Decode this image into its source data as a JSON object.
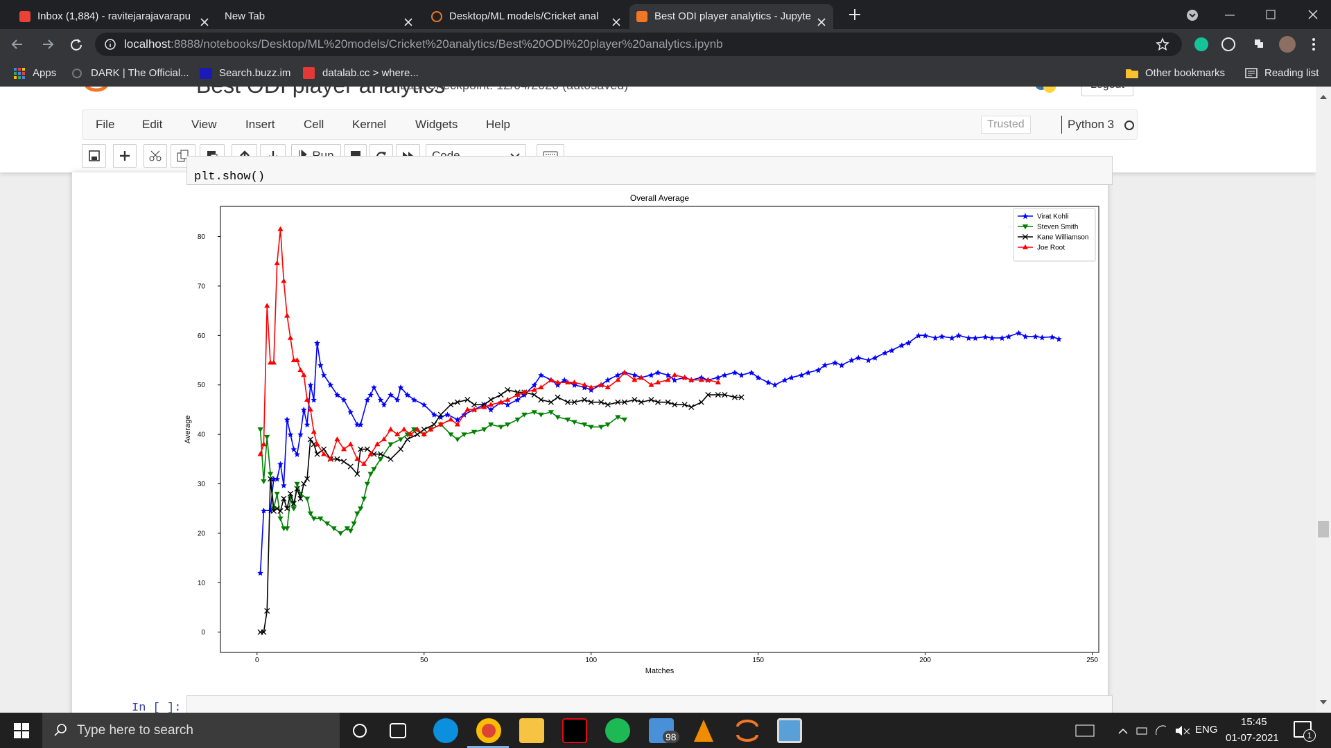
{
  "browser": {
    "tabs": [
      "Inbox (1,884) - ravitejarajavarapu",
      "New Tab",
      "Desktop/ML models/Cricket anal",
      "Best ODI player analytics - Jupyte"
    ],
    "address_host": "localhost",
    "address_path": ":8888/notebooks/Desktop/ML%20models/Cricket%20analytics/Best%20ODI%20player%20analytics.ipynb",
    "bookmarks": [
      "Apps",
      "DARK | The Official...",
      "Search.buzz.im",
      "datalab.cc > where..."
    ],
    "other_bookmarks": "Other bookmarks",
    "reading_list": "Reading list"
  },
  "notebook": {
    "title": "Best ODI player analytics",
    "checkpoint": "Last Checkpoint: 12/04/2020  (autosaved)",
    "logout": "Logout",
    "menu": [
      "File",
      "Edit",
      "View",
      "Insert",
      "Cell",
      "Kernel",
      "Widgets",
      "Help"
    ],
    "trusted": "Trusted",
    "kernel": "Python 3",
    "run": "Run",
    "cell_type": "Code",
    "code": "plt.show()",
    "prompt": "In [ ]:"
  },
  "chart_data": {
    "type": "line",
    "title": "Overall Average",
    "x_label": "Matches",
    "y_label": "Average",
    "xlim": [
      -10.95,
      251.95
    ],
    "ylim": [
      -4.1,
      86.1
    ],
    "xticks": [
      0,
      50,
      100,
      150,
      200,
      250
    ],
    "yticks": [
      0,
      10,
      20,
      30,
      40,
      50,
      60,
      70,
      80
    ],
    "legend": "upper right",
    "series": [
      {
        "name": "Virat Kohli",
        "color": "#0000ff",
        "marker": "*",
        "x": [
          1,
          2,
          4,
          5,
          6,
          7,
          8,
          9,
          10,
          11,
          12,
          13,
          14,
          15,
          16,
          17,
          18,
          19,
          20,
          22,
          24,
          26,
          28,
          30,
          31,
          33,
          34,
          35,
          37,
          38,
          40,
          42,
          43,
          45,
          47,
          50,
          53,
          55,
          57,
          60,
          62,
          65,
          68,
          70,
          73,
          75,
          78,
          80,
          83,
          85,
          88,
          90,
          92,
          95,
          98,
          100,
          103,
          105,
          108,
          110,
          113,
          115,
          118,
          120,
          123,
          125,
          128,
          130,
          133,
          135,
          138,
          140,
          143,
          145,
          148,
          150,
          153,
          155,
          158,
          160,
          163,
          165,
          168,
          170,
          173,
          175,
          178,
          180,
          183,
          185,
          188,
          190,
          193,
          195,
          198,
          200,
          203,
          205,
          208,
          210,
          213,
          215,
          218,
          220,
          223,
          225,
          228,
          230,
          233,
          235,
          238,
          240
        ],
        "values": [
          12,
          24.6,
          24.6,
          31,
          31,
          34,
          29.7,
          43,
          40,
          37,
          36,
          40,
          45,
          42,
          50,
          47,
          58.5,
          54,
          52,
          50,
          48,
          47,
          44.5,
          42,
          42,
          47,
          48,
          49.5,
          47,
          46,
          48,
          47,
          49.5,
          48,
          47,
          46,
          44,
          43.5,
          44,
          43,
          44,
          45,
          46,
          45,
          46.5,
          46,
          47,
          48,
          50,
          52,
          51,
          50,
          51,
          50,
          49.5,
          49,
          50,
          51,
          52,
          52.5,
          52,
          51.5,
          52,
          52.5,
          52,
          51,
          51.5,
          51,
          51.5,
          51,
          51.5,
          52,
          52.5,
          52,
          52.5,
          51.5,
          50.5,
          50,
          51,
          51.5,
          52,
          52.5,
          53,
          54,
          54.5,
          54,
          55,
          55.5,
          55,
          55.5,
          56.5,
          57,
          58,
          58.5,
          60,
          60,
          59.5,
          59.8,
          59.5,
          60,
          59.5,
          59.5,
          59.7,
          59.5,
          59.5,
          59.8,
          60.5,
          59.8,
          59.8,
          59.6,
          59.7,
          59.3
        ]
      },
      {
        "name": "Steven Smith",
        "color": "#008000",
        "marker": "v",
        "x": [
          1,
          2,
          3,
          4,
          5,
          6,
          7,
          8,
          9,
          10,
          11,
          12,
          13,
          15,
          16,
          17,
          19,
          21,
          23,
          25,
          27,
          28,
          29,
          30,
          31,
          32,
          33,
          34,
          35,
          37,
          40,
          43,
          45,
          47,
          50,
          52,
          55,
          58,
          60,
          62,
          65,
          68,
          70,
          73,
          75,
          78,
          80,
          83,
          85,
          88,
          90,
          93,
          95,
          98,
          100,
          103,
          105,
          108,
          110
        ],
        "values": [
          41,
          30.5,
          39.5,
          32,
          25,
          28,
          23,
          21,
          21,
          27,
          25,
          30,
          28,
          27,
          24,
          23,
          23,
          22,
          21,
          20,
          21,
          20.5,
          22,
          24,
          25,
          27,
          30,
          32,
          33,
          35,
          38,
          39,
          40,
          41,
          40,
          41,
          42,
          40,
          39,
          40,
          40.5,
          41,
          42,
          41.5,
          42,
          43,
          44,
          44.5,
          44,
          44.5,
          43.5,
          43,
          42.5,
          42,
          41.5,
          41.5,
          42,
          43.5,
          43
        ]
      },
      {
        "name": "Kane Williamson",
        "color": "#000000",
        "marker": "x",
        "x": [
          1,
          2,
          3,
          4,
          5,
          6,
          7,
          8,
          9,
          10,
          11,
          12,
          13,
          14,
          15,
          16,
          17,
          18,
          20,
          22,
          24,
          26,
          28,
          30,
          31,
          33,
          35,
          37,
          40,
          43,
          45,
          48,
          50,
          53,
          55,
          58,
          60,
          63,
          65,
          68,
          70,
          73,
          75,
          78,
          80,
          83,
          85,
          88,
          90,
          93,
          95,
          98,
          100,
          103,
          105,
          108,
          110,
          113,
          115,
          118,
          120,
          123,
          125,
          128,
          130,
          133,
          135,
          138,
          140,
          143,
          145
        ],
        "values": [
          0,
          0,
          4.3,
          31,
          24.5,
          25,
          24.5,
          27,
          25,
          28,
          26,
          29,
          27,
          30,
          31,
          39,
          38,
          36,
          37,
          35,
          35,
          34.5,
          33.5,
          32,
          37,
          37,
          36,
          36,
          35,
          37,
          39,
          40,
          41,
          42,
          44,
          46,
          46.5,
          47,
          46,
          46,
          47,
          48,
          49,
          48.5,
          48.5,
          48,
          47,
          46.5,
          47.5,
          46.5,
          46.5,
          47,
          46.5,
          46.5,
          46,
          46.5,
          46.5,
          47,
          46.5,
          47,
          46.5,
          46.5,
          46,
          46,
          45.5,
          46.5,
          48,
          48,
          48,
          47.5,
          47.5
        ]
      },
      {
        "name": "Joe Root",
        "color": "#ff0000",
        "marker": "^",
        "x": [
          1,
          2,
          3,
          4,
          5,
          6,
          7,
          8,
          9,
          10,
          11,
          12,
          13,
          14,
          15,
          16,
          17,
          18,
          20,
          22,
          24,
          26,
          28,
          30,
          32,
          34,
          36,
          38,
          40,
          42,
          44,
          46,
          48,
          50,
          52,
          55,
          58,
          60,
          63,
          65,
          68,
          70,
          73,
          75,
          78,
          80,
          83,
          85,
          88,
          90,
          93,
          95,
          98,
          100,
          103,
          105,
          108,
          110,
          113,
          115,
          118,
          120,
          123,
          125,
          128,
          130,
          133,
          135,
          138
        ],
        "values": [
          36,
          38,
          66,
          54.5,
          54.5,
          74.6,
          81.5,
          71,
          64,
          59.5,
          55,
          55,
          53,
          52,
          47,
          45,
          40.5,
          38,
          36,
          35,
          39,
          37,
          38,
          35,
          34,
          36,
          38,
          39,
          41,
          40,
          41,
          40,
          41,
          40,
          41,
          42,
          43,
          42,
          45,
          45,
          45.5,
          46,
          46.5,
          47,
          48,
          48.5,
          49,
          49.5,
          51,
          50.5,
          50.5,
          50.5,
          50,
          49.5,
          50,
          49.5,
          51,
          52.5,
          51,
          51.5,
          50,
          50.5,
          51,
          52,
          51.5,
          51,
          51,
          51,
          50.5
        ]
      }
    ]
  },
  "taskbar": {
    "search": "Type here to search",
    "mail_badge": "98",
    "language": "ENG",
    "time": "15:45",
    "date": "01-07-2021",
    "notifications": "1"
  }
}
